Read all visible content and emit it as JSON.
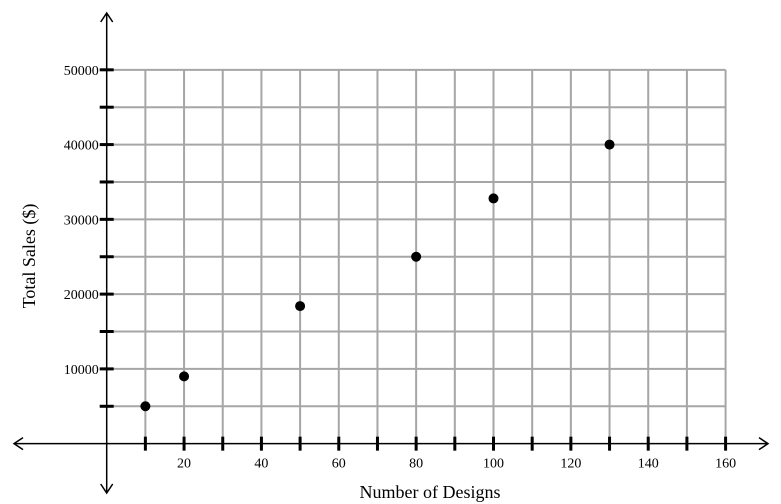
{
  "chart_data": {
    "type": "scatter",
    "title": "",
    "xlabel": "Number of Designs",
    "ylabel": "Total Sales ($)",
    "xlim": [
      -25,
      172
    ],
    "ylim": [
      -7000,
      58000
    ],
    "x_ticks": [
      20,
      40,
      60,
      80,
      100,
      120,
      140,
      160
    ],
    "x_minor_step": 10,
    "y_ticks": [
      10000,
      20000,
      30000,
      40000,
      50000
    ],
    "y_minor_step": 5000,
    "grid": true,
    "grid_range": {
      "x": [
        0,
        160
      ],
      "y": [
        0,
        50000
      ]
    },
    "points": [
      {
        "x": 10,
        "y": 5000
      },
      {
        "x": 20,
        "y": 9000
      },
      {
        "x": 50,
        "y": 18400
      },
      {
        "x": 80,
        "y": 25000
      },
      {
        "x": 100,
        "y": 32800
      },
      {
        "x": 130,
        "y": 40000
      }
    ],
    "colors": {
      "grid": "#a6a6a6",
      "axis": "#000000",
      "point": "#000000"
    }
  }
}
